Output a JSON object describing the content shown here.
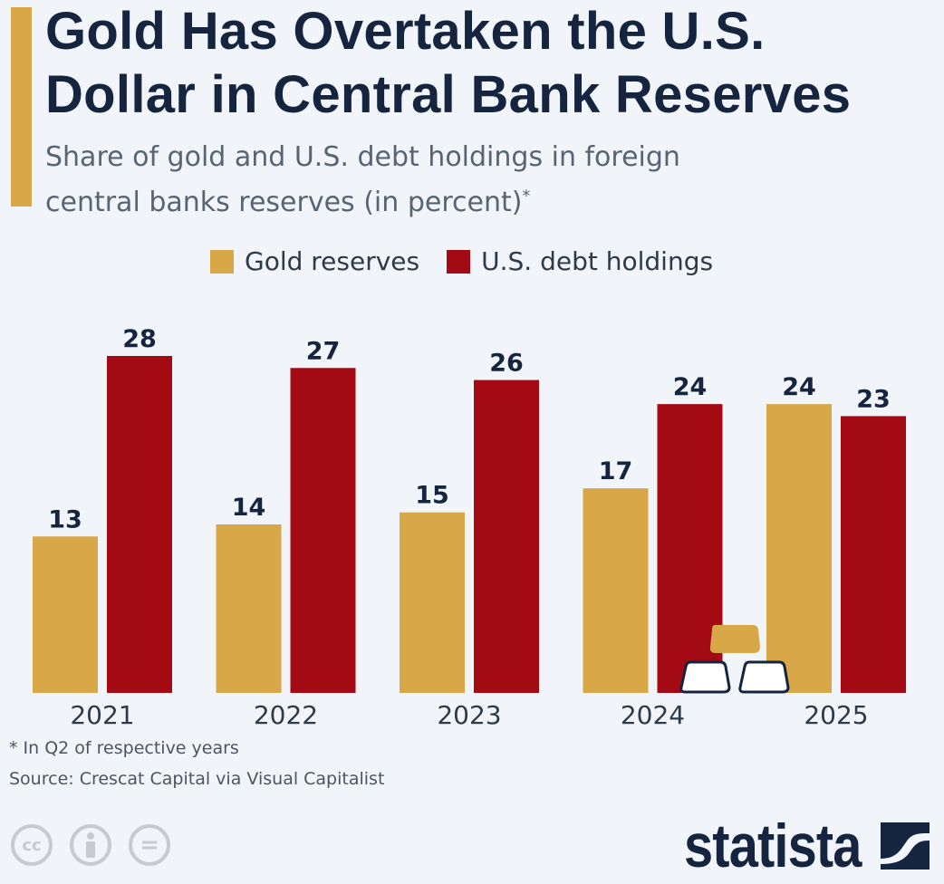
{
  "chart_data": {
    "type": "bar",
    "title": "Gold Has Overtaken the U.S. Dollar in Central Bank Reserves",
    "title_lines": [
      "Gold Has Overtaken the U.S.",
      "Dollar in Central Bank Reserves"
    ],
    "subtitle_lines": [
      "Share of gold and U.S. debt holdings in foreign",
      "central banks reserves (in percent)"
    ],
    "subtitle_mark": "*",
    "categories": [
      "2021",
      "2022",
      "2023",
      "2024",
      "2025"
    ],
    "series": [
      {
        "name": "Gold reserves",
        "color": "#d7a748",
        "values": [
          13,
          14,
          15,
          17,
          24
        ]
      },
      {
        "name": "U.S. debt holdings",
        "color": "#a30a14",
        "values": [
          28,
          27,
          26,
          24,
          23
        ]
      }
    ],
    "ylim": [
      0,
      28
    ],
    "grid": false,
    "legend": "top-center",
    "xlabel": "",
    "ylabel": ""
  },
  "footnote": "* In Q2 of respective years",
  "source": "Source: Crescat Capital via Visual Capitalist",
  "license_icons": [
    "cc-icon",
    "attribution-icon",
    "no-derivatives-icon"
  ],
  "license_text": {
    "cc": "cc",
    "nd": "="
  },
  "brand": "statista"
}
